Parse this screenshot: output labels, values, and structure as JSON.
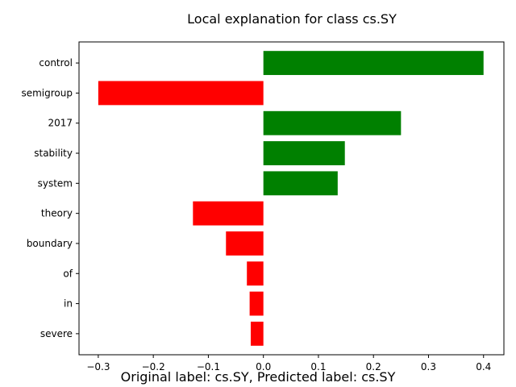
{
  "chart_data": {
    "type": "bar",
    "orientation": "horizontal",
    "title": "Local explanation for class cs.SY",
    "xlabel": "",
    "ylabel": "",
    "categories": [
      "control",
      "semigroup",
      "2017",
      "stability",
      "system",
      "theory",
      "boundary",
      "of",
      "in",
      "severe"
    ],
    "values": [
      0.4,
      -0.3,
      0.25,
      0.148,
      0.135,
      -0.128,
      -0.068,
      -0.03,
      -0.025,
      -0.023
    ],
    "xlim": [
      -0.335,
      0.437
    ],
    "xticks": [
      -0.3,
      -0.2,
      -0.1,
      0.0,
      0.1,
      0.2,
      0.3,
      0.4
    ],
    "xtick_labels": [
      "−0.3",
      "−0.2",
      "−0.1",
      "0.0",
      "0.1",
      "0.2",
      "0.3",
      "0.4"
    ],
    "positive_color": "#008000",
    "negative_color": "#ff0000",
    "grid": false
  },
  "caption": "Original label: cs.SY, Predicted label: cs.SY"
}
